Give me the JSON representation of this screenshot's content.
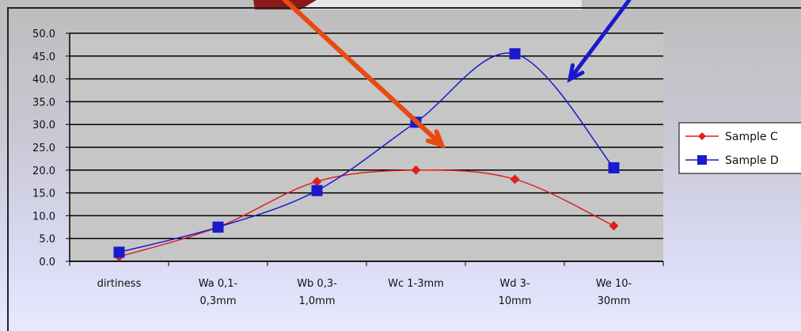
{
  "chart_data": {
    "type": "line",
    "title": "",
    "xlabel": "",
    "ylabel": "",
    "ylim": [
      0,
      50
    ],
    "yticks": [
      "0.0",
      "5.0",
      "10.0",
      "15.0",
      "20.0",
      "25.0",
      "30.0",
      "35.0",
      "40.0",
      "45.0",
      "50.0"
    ],
    "categories": [
      [
        "dirtiness"
      ],
      [
        "Wa 0,1-",
        "0,3mm"
      ],
      [
        "Wb 0,3-",
        "1,0mm"
      ],
      [
        "Wc 1-3mm"
      ],
      [
        "Wd 3-",
        "10mm"
      ],
      [
        "We 10-",
        "30mm"
      ]
    ],
    "series": [
      {
        "name": "Sample C",
        "color": "#e02020",
        "marker": "diamond",
        "values": [
          1.0,
          7.5,
          17.5,
          20.0,
          18.0,
          7.8
        ]
      },
      {
        "name": "Sample D",
        "color": "#1a1acc",
        "marker": "square",
        "values": [
          2.0,
          7.5,
          15.5,
          30.5,
          45.5,
          20.5
        ]
      }
    ],
    "grid": "horizontal",
    "legend_position": "right",
    "colors": {
      "plot_background": "#c6c6c6",
      "gridline": "#000000",
      "arrow_orange": "#e84a10",
      "arrow_blue": "#1a1acc"
    }
  }
}
